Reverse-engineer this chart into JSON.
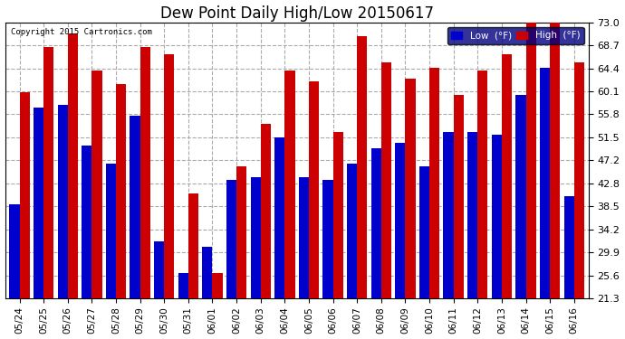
{
  "title": "Dew Point Daily High/Low 20150617",
  "copyright": "Copyright 2015 Cartronics.com",
  "categories": [
    "05/24",
    "05/25",
    "05/26",
    "05/27",
    "05/28",
    "05/29",
    "05/30",
    "05/31",
    "06/01",
    "06/02",
    "06/03",
    "06/04",
    "06/05",
    "06/06",
    "06/07",
    "06/08",
    "06/09",
    "06/10",
    "06/11",
    "06/12",
    "06/13",
    "06/14",
    "06/15",
    "06/16"
  ],
  "low_values": [
    39.0,
    57.0,
    57.5,
    50.0,
    46.5,
    55.5,
    32.0,
    26.0,
    31.0,
    43.5,
    44.0,
    51.5,
    44.0,
    43.5,
    46.5,
    49.5,
    50.5,
    46.0,
    52.5,
    52.5,
    52.0,
    59.5,
    64.5,
    40.5
  ],
  "high_values": [
    60.0,
    68.5,
    71.0,
    64.0,
    61.5,
    68.5,
    67.0,
    41.0,
    26.0,
    46.0,
    54.0,
    64.0,
    62.0,
    52.5,
    70.5,
    65.5,
    62.5,
    64.5,
    59.5,
    64.0,
    67.0,
    73.0,
    73.0,
    65.5
  ],
  "low_color": "#0000cc",
  "high_color": "#cc0000",
  "bg_color": "#ffffff",
  "plot_bg_color": "#ffffff",
  "grid_color": "#aaaaaa",
  "yticks": [
    21.3,
    25.6,
    29.9,
    34.2,
    38.5,
    42.8,
    47.2,
    51.5,
    55.8,
    60.1,
    64.4,
    68.7,
    73.0
  ],
  "ymin": 21.3,
  "ymax": 73.0,
  "title_fontsize": 12,
  "legend_labels": [
    "Low  (°F)",
    "High  (°F)"
  ],
  "bar_width": 0.42
}
